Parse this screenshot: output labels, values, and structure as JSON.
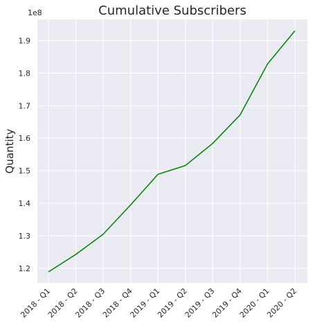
{
  "chart_data": {
    "type": "line",
    "title": "Cumulative Subscribers",
    "xlabel": "",
    "ylabel": "Quantity",
    "y_offset_label": "1e8",
    "categories": [
      "2018 - Q1",
      "2018 - Q2",
      "2018 - Q3",
      "2018 - Q4",
      "2019 - Q1",
      "2019 - Q2",
      "2019 - Q3",
      "2019 - Q4",
      "2020 - Q1",
      "2020 - Q2"
    ],
    "series": [
      {
        "color": "#008000",
        "values": [
          1.189,
          1.243,
          1.305,
          1.395,
          1.489,
          1.516,
          1.584,
          1.672,
          1.828,
          1.93
        ]
      }
    ],
    "ylim": [
      1.155,
      1.965
    ],
    "yticks": [
      1.2,
      1.3,
      1.4,
      1.5,
      1.6,
      1.7,
      1.8,
      1.9
    ],
    "ytick_labels": [
      "1.2",
      "1.3",
      "1.4",
      "1.5",
      "1.6",
      "1.7",
      "1.8",
      "1.9"
    ],
    "grid": true,
    "background": "#EAEAF2",
    "legend": "none"
  }
}
